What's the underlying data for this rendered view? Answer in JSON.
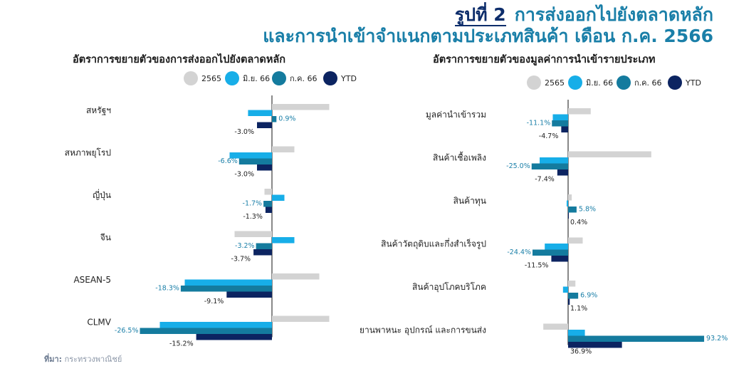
{
  "header": {
    "figure_label": "รูปที่ 2",
    "title_line1": "การส่งออกไปยังตลาดหลัก",
    "title_line2": "และการนำเข้าจำแนกตามประเภทสินค้า เดือน ก.ค. 2566"
  },
  "source": {
    "label": "ที่มา:",
    "text": "กระทรวงพาณิชย์"
  },
  "colors": {
    "2565": "#d3d3d3",
    "jun66": "#17aee8",
    "jul66": "#147b9e",
    "ytd": "#0c2461",
    "label": "#1a7fa8"
  },
  "chart_data": [
    {
      "type": "bar",
      "orientation": "horizontal",
      "title": "อัตราการขยายตัวของการส่งออกไปยังตลาดหลัก",
      "legend": [
        "2565",
        "มิ.ย. 66",
        "ก.ค. 66",
        "YTD"
      ],
      "categories": [
        "สหรัฐฯ",
        "สหภาพยุโรป",
        "ญี่ปุ่น",
        "จีน",
        "ASEAN-5",
        "CLMV"
      ],
      "series": [
        {
          "name": "2565",
          "values": [
            11.5,
            4.5,
            -1.5,
            -7.5,
            9.5,
            11.5
          ],
          "labeled": false
        },
        {
          "name": "มิ.ย. 66",
          "values": [
            -4.8,
            -8.5,
            2.5,
            4.5,
            -17.5,
            -22.5
          ],
          "labeled": false
        },
        {
          "name": "ก.ค. 66",
          "values": [
            0.9,
            -6.6,
            -1.7,
            -3.2,
            -18.3,
            -26.5
          ],
          "labeled": true
        },
        {
          "name": "YTD",
          "values": [
            -3.0,
            -3.0,
            -1.3,
            -3.7,
            -9.1,
            -15.2
          ],
          "labeled": true
        }
      ],
      "labels": {
        "jul": [
          "0.9%",
          "-6.6%",
          "-1.7%",
          "-3.2%",
          "-18.3%",
          "-26.5%"
        ],
        "ytd": [
          "-3.0%",
          "-3.0%",
          "-1.3%",
          "-3.7%",
          "-9.1%",
          "-15.2%"
        ]
      }
    },
    {
      "type": "bar",
      "orientation": "horizontal",
      "title": "อัตราการขยายตัวของมูลค่าการนำเข้ารายประเภท",
      "legend": [
        "2565",
        "มิ.ย. 66",
        "ก.ค. 66",
        "YTD"
      ],
      "categories": [
        "มูลค่านำเข้ารวม",
        "สินค้าเชื้อเพลิง",
        "สินค้าทุน",
        "สินค้าวัตถุดิบและกึ่งสำเร็จรูป",
        "สินค้าอุปโภคบริโภค",
        "ยานพาหนะ อุปกรณ์ และการขนส่ง"
      ],
      "series": [
        {
          "name": "2565",
          "values": [
            15.5,
            57.0,
            2.5,
            10.0,
            5.0,
            -17.0
          ],
          "labeled": false
        },
        {
          "name": "มิ.ย. 66",
          "values": [
            -10.5,
            -19.5,
            -1.0,
            -16.0,
            -3.5,
            11.5
          ],
          "labeled": false
        },
        {
          "name": "ก.ค. 66",
          "values": [
            -11.1,
            -25.0,
            5.8,
            -24.4,
            6.9,
            93.2
          ],
          "labeled": true
        },
        {
          "name": "YTD",
          "values": [
            -4.7,
            -7.4,
            0.4,
            -11.5,
            1.1,
            36.9
          ],
          "labeled": true
        }
      ],
      "labels": {
        "jul": [
          "-11.1%",
          "-25.0%",
          "5.8%",
          "-24.4%",
          "6.9%",
          "93.2%"
        ],
        "ytd": [
          "-4.7%",
          "-7.4%",
          "0.4%",
          "-11.5%",
          "1.1%",
          "36.9%"
        ]
      }
    }
  ]
}
